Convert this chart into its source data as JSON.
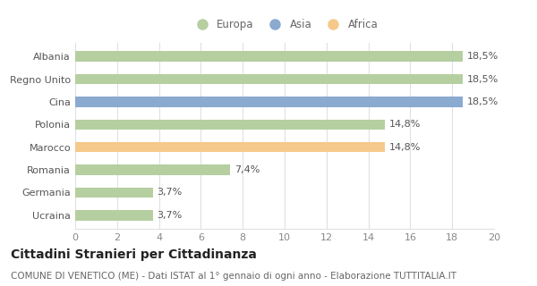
{
  "categories": [
    "Ucraina",
    "Germania",
    "Romania",
    "Marocco",
    "Polonia",
    "Cina",
    "Regno Unito",
    "Albania"
  ],
  "values": [
    3.7,
    3.7,
    7.4,
    14.8,
    14.8,
    18.5,
    18.5,
    18.5
  ],
  "colors": [
    "#b5cfa0",
    "#b5cfa0",
    "#b5cfa0",
    "#f5c98a",
    "#b5cfa0",
    "#8aaad0",
    "#b5cfa0",
    "#b5cfa0"
  ],
  "labels": [
    "3,7%",
    "3,7%",
    "7,4%",
    "14,8%",
    "14,8%",
    "18,5%",
    "18,5%",
    "18,5%"
  ],
  "legend": [
    {
      "label": "Europa",
      "color": "#b5cfa0"
    },
    {
      "label": "Asia",
      "color": "#8aaad0"
    },
    {
      "label": "Africa",
      "color": "#f5c98a"
    }
  ],
  "xlim": [
    0,
    20
  ],
  "xticks": [
    0,
    2,
    4,
    6,
    8,
    10,
    12,
    14,
    16,
    18,
    20
  ],
  "title_bold": "Cittadini Stranieri per Cittadinanza",
  "subtitle": "COMUNE DI VENETICO (ME) - Dati ISTAT al 1° gennaio di ogni anno - Elaborazione TUTTITALIA.IT",
  "background_color": "#ffffff",
  "grid_color": "#e0e0e0",
  "bar_height": 0.45,
  "label_fontsize": 8,
  "tick_fontsize": 8,
  "title_fontsize": 10,
  "subtitle_fontsize": 7.5
}
